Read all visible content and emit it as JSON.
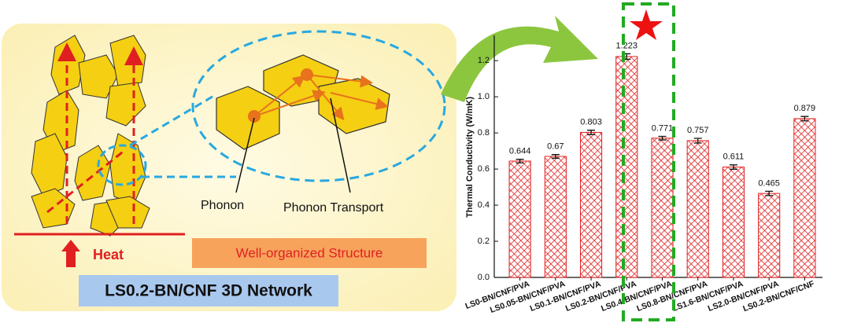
{
  "chart_data": {
    "type": "bar",
    "y_label": "Thermal Conductivity (W/mK)",
    "categories": [
      "LS0-BN/CNF/PVA",
      "LS0.05-BN/CNF/PVA",
      "LS0.1-BN/CNF/PVA",
      "LS0.2-BN/CNF/PVA",
      "LS0.4-BN/CNF/PVA",
      "LS0.8-BN/CNF/PVA",
      "LS1.6-BN/CNF/PVA",
      "LS2.0-BN/CNF/PVA",
      "LS0.2-BN/CNF/CNF"
    ],
    "values": [
      0.644,
      0.67,
      0.803,
      1.223,
      0.771,
      0.757,
      0.611,
      0.465,
      0.879
    ],
    "errors": [
      0.01,
      0.01,
      0.012,
      0.015,
      0.01,
      0.013,
      0.012,
      0.012,
      0.012
    ],
    "color": "#e02020",
    "ylim": [
      0,
      1.34
    ],
    "yticks": [
      {
        "value": 0,
        "label": "0.0"
      },
      0.2,
      0.4,
      0.6,
      0.8,
      {
        "value": 1,
        "label": "1.0"
      },
      1.2
    ]
  },
  "diagram": {
    "heat": "Heat",
    "structure": "Well-organized Structure",
    "network": "LS0.2-BN/CNF 3D Network",
    "phonon": "Phonon",
    "transport": "Phonon Transport"
  }
}
